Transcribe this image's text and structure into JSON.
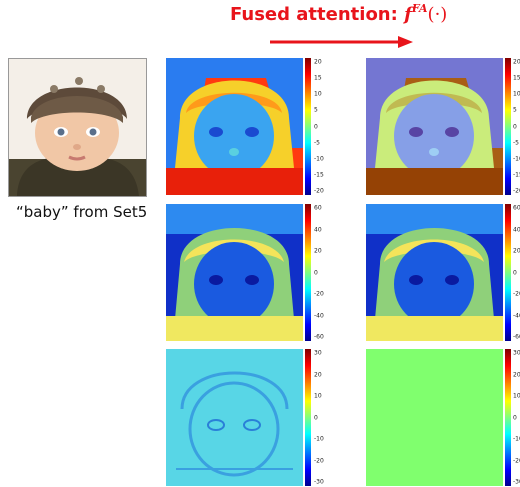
{
  "header": {
    "title_prefix": "Fused attention: ",
    "title_symbol": "f",
    "title_superscript": "FA",
    "title_argument": "(·)"
  },
  "source": {
    "caption": "“baby” from Set5"
  },
  "panels": [
    {
      "row": 1,
      "col": 1,
      "ticks": [
        "20",
        "15",
        "10",
        "5",
        "0",
        "-5",
        "-10",
        "-15",
        "-20"
      ]
    },
    {
      "row": 1,
      "col": 2,
      "ticks": [
        "20",
        "15",
        "10",
        "5",
        "0",
        "-5",
        "-10",
        "-15",
        "-20"
      ]
    },
    {
      "row": 2,
      "col": 1,
      "ticks": [
        "60",
        "40",
        "20",
        "0",
        "-20",
        "-40",
        "-60"
      ]
    },
    {
      "row": 2,
      "col": 2,
      "ticks": [
        "60",
        "40",
        "20",
        "0",
        "-20",
        "-40",
        "-60"
      ]
    },
    {
      "row": 3,
      "col": 1,
      "ticks": [
        "30",
        "20",
        "10",
        "0",
        "-10",
        "-20",
        "-30"
      ]
    },
    {
      "row": 3,
      "col": 2,
      "ticks": [
        "30",
        "20",
        "10",
        "0",
        "-10",
        "-20",
        "-30"
      ]
    }
  ],
  "colors": {
    "title": "#e8141b",
    "arrow": "#e8141b",
    "flat_map": "#80ff6e"
  }
}
